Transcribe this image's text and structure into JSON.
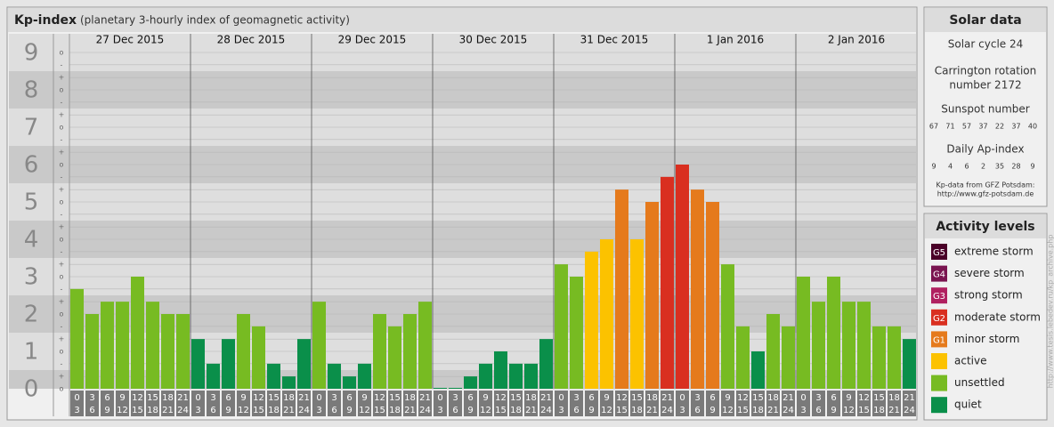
{
  "header": {
    "title": "Kp-index",
    "subtitle": "(planetary 3-hourly index of geomagnetic activity)"
  },
  "chart_data": {
    "type": "bar",
    "categories": [
      "27 Dec 2015",
      "28 Dec 2015",
      "29 Dec 2015",
      "30 Dec 2015",
      "31 Dec 2015",
      "1 Jan 2016",
      "2 Jan 2016"
    ],
    "hour_labels": [
      [
        "0",
        "3"
      ],
      [
        "3",
        "6"
      ],
      [
        "6",
        "9"
      ],
      [
        "9",
        "12"
      ],
      [
        "12",
        "15"
      ],
      [
        "15",
        "18"
      ],
      [
        "18",
        "21"
      ],
      [
        "21",
        "24"
      ]
    ],
    "values": [
      [
        2.67,
        2,
        2.33,
        2.33,
        3,
        2.33,
        2,
        2
      ],
      [
        1.33,
        0.67,
        1.33,
        2,
        1.67,
        0.67,
        0.33,
        1.33
      ],
      [
        2.33,
        0.67,
        0.33,
        0.67,
        2,
        1.67,
        2,
        2.33
      ],
      [
        0,
        0,
        0.33,
        0.67,
        1,
        0.67,
        0.67,
        1.33
      ],
      [
        3.33,
        3,
        3.67,
        4,
        5.33,
        4,
        5,
        5.67
      ],
      [
        6,
        5.33,
        5,
        3.33,
        1.67,
        1,
        2,
        1.67
      ],
      [
        3,
        2.33,
        3,
        2.33,
        2.33,
        1.67,
        1.67,
        1.33
      ]
    ],
    "colors": [
      [
        "#77bb22",
        "#77bb22",
        "#77bb22",
        "#77bb22",
        "#77bb22",
        "#77bb22",
        "#77bb22",
        "#77bb22"
      ],
      [
        "#0a8f4a",
        "#0a8f4a",
        "#0a8f4a",
        "#77bb22",
        "#77bb22",
        "#0a8f4a",
        "#0a8f4a",
        "#0a8f4a"
      ],
      [
        "#77bb22",
        "#0a8f4a",
        "#0a8f4a",
        "#0a8f4a",
        "#77bb22",
        "#77bb22",
        "#77bb22",
        "#77bb22"
      ],
      [
        "#0a8f4a",
        "#0a8f4a",
        "#0a8f4a",
        "#0a8f4a",
        "#0a8f4a",
        "#0a8f4a",
        "#0a8f4a",
        "#0a8f4a"
      ],
      [
        "#77bb22",
        "#77bb22",
        "#fcc200",
        "#fcc200",
        "#e57a1c",
        "#fcc200",
        "#e57a1c",
        "#d92f20"
      ],
      [
        "#d92f20",
        "#e57a1c",
        "#e57a1c",
        "#77bb22",
        "#77bb22",
        "#0a8f4a",
        "#77bb22",
        "#77bb22"
      ],
      [
        "#77bb22",
        "#77bb22",
        "#77bb22",
        "#77bb22",
        "#77bb22",
        "#77bb22",
        "#77bb22",
        "#0a8f4a"
      ]
    ],
    "ylim": [
      0,
      9.5
    ],
    "yticks": [
      0,
      1,
      2,
      3,
      4,
      5,
      6,
      7,
      8,
      9
    ],
    "subticks": [
      {
        "value": 0,
        "label": "o"
      },
      {
        "value": 0.33,
        "label": "+"
      },
      {
        "value": 0.67,
        "label": "-"
      },
      {
        "value": 1,
        "label": "o"
      },
      {
        "value": 1.33,
        "label": "+"
      },
      {
        "value": 1.67,
        "label": "-"
      },
      {
        "value": 2,
        "label": "o"
      },
      {
        "value": 2.33,
        "label": "+"
      },
      {
        "value": 2.67,
        "label": "-"
      },
      {
        "value": 3,
        "label": "o"
      },
      {
        "value": 3.33,
        "label": "+"
      },
      {
        "value": 3.67,
        "label": "-"
      },
      {
        "value": 4,
        "label": "o"
      },
      {
        "value": 4.33,
        "label": "+"
      },
      {
        "value": 4.67,
        "label": "-"
      },
      {
        "value": 5,
        "label": "o"
      },
      {
        "value": 5.33,
        "label": "+"
      },
      {
        "value": 5.67,
        "label": "-"
      },
      {
        "value": 6,
        "label": "o"
      },
      {
        "value": 6.33,
        "label": "+"
      },
      {
        "value": 6.67,
        "label": "-"
      },
      {
        "value": 7,
        "label": "o"
      },
      {
        "value": 7.33,
        "label": "+"
      },
      {
        "value": 7.67,
        "label": "-"
      },
      {
        "value": 8,
        "label": "o"
      },
      {
        "value": 8.33,
        "label": "+"
      },
      {
        "value": 8.67,
        "label": "-"
      },
      {
        "value": 9,
        "label": "o"
      }
    ],
    "grid": true
  },
  "solar_data": {
    "title": "Solar data",
    "cycle": "Solar cycle 24",
    "carrington": [
      "Carrington rotation",
      "number 2172"
    ],
    "sunspot_title": "Sunspot number",
    "sunspot": [
      "67",
      "71",
      "57",
      "37",
      "22",
      "37",
      "40"
    ],
    "ap_title": "Daily Ap-index",
    "ap": [
      "9",
      "4",
      "6",
      "2",
      "35",
      "28",
      "9"
    ],
    "source": [
      "Kp-data from GFZ Potsdam:",
      "http://www.gfz-potsdam.de"
    ]
  },
  "activity_levels": {
    "title": "Activity levels",
    "items": [
      {
        "code": "G5",
        "label": "extreme storm",
        "color": "#4a0028"
      },
      {
        "code": "G4",
        "label": "severe storm",
        "color": "#7a1450"
      },
      {
        "code": "G3",
        "label": "strong storm",
        "color": "#b02060"
      },
      {
        "code": "G2",
        "label": "moderate storm",
        "color": "#d92f20"
      },
      {
        "code": "G1",
        "label": "minor storm",
        "color": "#e57a1c"
      },
      {
        "code": "",
        "label": "active",
        "color": "#fcc200"
      },
      {
        "code": "",
        "label": "unsettled",
        "color": "#77bb22"
      },
      {
        "code": "",
        "label": "quiet",
        "color": "#0a8f4a"
      }
    ]
  },
  "credit": "http://www.tesis.lebedev.ru/kp_archive.php"
}
